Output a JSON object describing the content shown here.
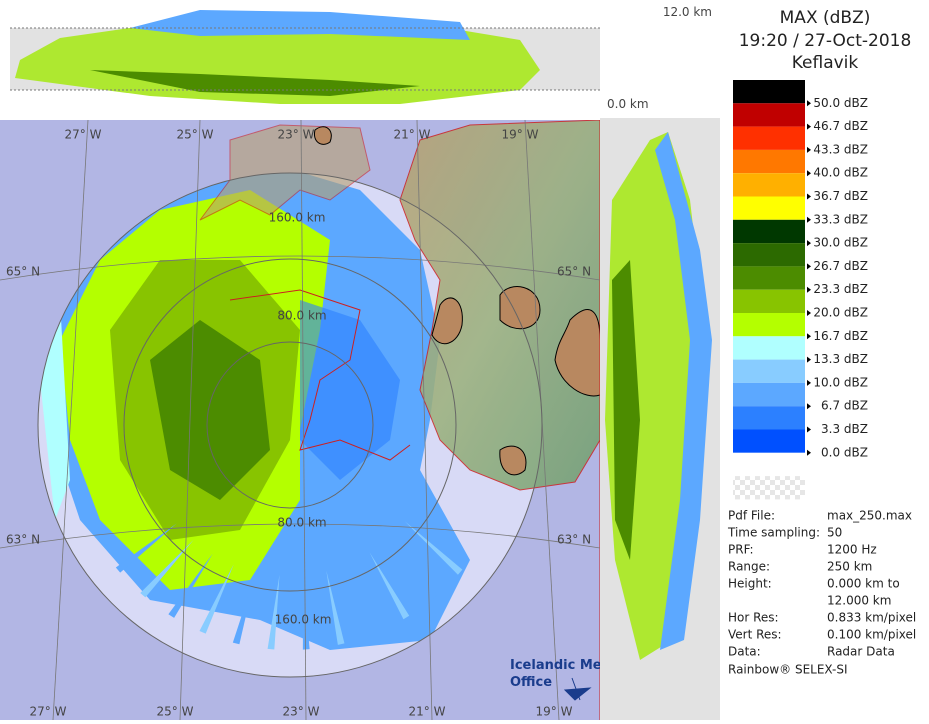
{
  "header": {
    "title": "MAX (dBZ)",
    "time": "19:20 / 27-Oct-2018",
    "site": "Keflavik"
  },
  "legend": {
    "labels": [
      "50.0 dBZ",
      "46.7 dBZ",
      "43.3 dBZ",
      "40.0 dBZ",
      "36.7 dBZ",
      "33.3 dBZ",
      "30.0 dBZ",
      "26.7 dBZ",
      "23.3 dBZ",
      "20.0 dBZ",
      "16.7 dBZ",
      "13.3 dBZ",
      "10.0 dBZ",
      "6.7 dBZ",
      "3.3 dBZ",
      "0.0 dBZ"
    ],
    "colors": [
      "#000000",
      "#c00000",
      "#ff3000",
      "#ff7800",
      "#ffb000",
      "#ffff00",
      "#003800",
      "#2c6a00",
      "#4c8c00",
      "#88c400",
      "#b4ff00",
      "#b0ffff",
      "#88ccff",
      "#5ca8ff",
      "#2c80ff",
      "#0050ff",
      "#ffffff"
    ]
  },
  "info": {
    "rows": [
      {
        "label": "Pdf File:",
        "lines": [
          "max_250.max"
        ]
      },
      {
        "label": "Time sampling:",
        "lines": [
          "50"
        ]
      },
      {
        "label": "PRF:",
        "lines": [
          "1200 Hz"
        ]
      },
      {
        "label": "Range:",
        "lines": [
          "250 km"
        ]
      },
      {
        "label": "Height:",
        "lines": [
          "0.000 km to",
          "12.000 km"
        ]
      },
      {
        "label": "Hor Res:",
        "lines": [
          "0.833 km/pixel"
        ]
      },
      {
        "label": "Vert Res:",
        "lines": [
          "0.100 km/pixel"
        ]
      },
      {
        "label": "Data:",
        "lines": [
          "Radar Data"
        ]
      }
    ]
  },
  "footer": "Rainbow® SELEX-SI",
  "map": {
    "lon_top": [
      "27° W",
      "25° W",
      "23° W",
      "21° W",
      "19° W"
    ],
    "lon_bottom": [
      "27° W",
      "25° W",
      "23° W",
      "21° W",
      "19° W"
    ],
    "lat_left": [
      "65° N",
      "63° N"
    ],
    "lat_right": [
      "65° N",
      "63° N"
    ],
    "rings_upper": [
      "160.0 km",
      "80.0 km"
    ],
    "rings_lower": [
      "80.0 km",
      "160.0 km"
    ]
  },
  "sections": {
    "top_height": "12.0 km",
    "bottom_height": "0.0 km"
  },
  "logo": [
    "Icelandic Met",
    "Office"
  ]
}
